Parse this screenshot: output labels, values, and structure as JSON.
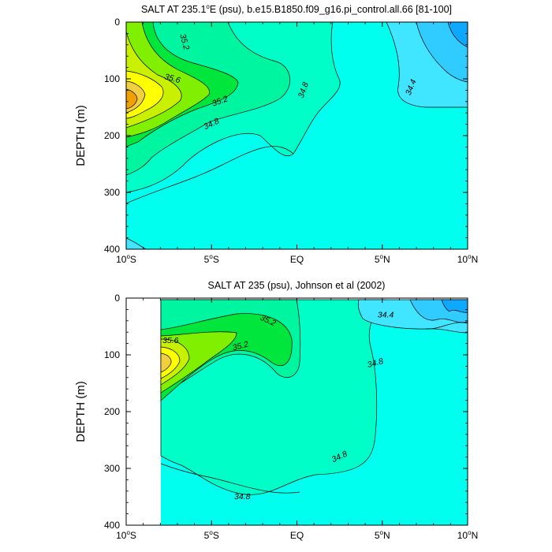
{
  "chart_data": [
    {
      "type": "contour",
      "title_parts": [
        "SALT AT 235.1",
        "o",
        "E (psu), b.e15.B1850.f09_g16.pi_control.all.66 [81-100]"
      ],
      "ylabel": "DEPTH (m)",
      "xlabel": "",
      "xlim": [
        -10,
        10
      ],
      "ylim": [
        400,
        0
      ],
      "x_ticks": [
        {
          "value": -10,
          "num": "10",
          "deg": "o",
          "hemi": "S"
        },
        {
          "value": -5,
          "num": "5",
          "deg": "o",
          "hemi": "S"
        },
        {
          "value": 0,
          "num": "EQ",
          "deg": "",
          "hemi": ""
        },
        {
          "value": 5,
          "num": "5",
          "deg": "o",
          "hemi": "N"
        },
        {
          "value": 10,
          "num": "10",
          "deg": "o",
          "hemi": "N"
        }
      ],
      "y_ticks": [
        {
          "value": 0,
          "label": "0"
        },
        {
          "value": 100,
          "label": "100"
        },
        {
          "value": 200,
          "label": "200"
        },
        {
          "value": 300,
          "label": "300"
        },
        {
          "value": 400,
          "label": "400"
        }
      ],
      "contour_labels": [
        {
          "text": "35.2",
          "lon": -6.6,
          "depth": 35,
          "angle": 75
        },
        {
          "text": "35.6",
          "lon": -7.3,
          "depth": 100,
          "angle": 15
        },
        {
          "text": "35.2",
          "lon": -4.5,
          "depth": 140,
          "angle": -20
        },
        {
          "text": "34.8",
          "lon": -5.0,
          "depth": 180,
          "angle": -25
        },
        {
          "text": "34.8",
          "lon": 0.4,
          "depth": 120,
          "angle": -70
        },
        {
          "text": "34.4",
          "lon": 6.7,
          "depth": 115,
          "angle": -68
        }
      ]
    },
    {
      "type": "contour",
      "title_parts": [
        "SALT AT 235 (psu), Johnson et al (2002)"
      ],
      "ylabel": "DEPTH (m)",
      "xlabel": "",
      "xlim": [
        -10,
        10
      ],
      "ylim": [
        400,
        0
      ],
      "data_xlim": [
        -8,
        10
      ],
      "x_ticks": [
        {
          "value": -10,
          "num": "10",
          "deg": "o",
          "hemi": "S"
        },
        {
          "value": -5,
          "num": "5",
          "deg": "o",
          "hemi": "S"
        },
        {
          "value": 0,
          "num": "EQ",
          "deg": "",
          "hemi": ""
        },
        {
          "value": 5,
          "num": "5",
          "deg": "o",
          "hemi": "N"
        },
        {
          "value": 10,
          "num": "10",
          "deg": "o",
          "hemi": "N"
        }
      ],
      "y_ticks": [
        {
          "value": 0,
          "label": "0"
        },
        {
          "value": 100,
          "label": "100"
        },
        {
          "value": 200,
          "label": "200"
        },
        {
          "value": 300,
          "label": "300"
        },
        {
          "value": 400,
          "label": "400"
        }
      ],
      "contour_labels": [
        {
          "text": "35.2",
          "lon": -1.7,
          "depth": 40,
          "angle": 25
        },
        {
          "text": "35.6",
          "lon": -7.4,
          "depth": 75,
          "angle": 0
        },
        {
          "text": "35.2",
          "lon": -3.3,
          "depth": 85,
          "angle": -15
        },
        {
          "text": "34.4",
          "lon": 5.2,
          "depth": 30,
          "angle": 0
        },
        {
          "text": "34.8",
          "lon": 4.6,
          "depth": 115,
          "angle": -15
        },
        {
          "text": "34.8",
          "lon": 2.5,
          "depth": 280,
          "angle": -25
        },
        {
          "text": "34.8",
          "lon": -3.2,
          "depth": 350,
          "angle": 0
        }
      ]
    }
  ],
  "colors": {
    "cyan": "#00ffee",
    "aquamarine": "#00ffc8",
    "light_green": "#00f5a0",
    "green": "#00e63c",
    "lime": "#80f000",
    "yellow_green": "#c8f000",
    "yellow": "#ffff00",
    "amber": "#f0d040",
    "orange": "#f0a000",
    "light_cyan": "#40e6ff",
    "sky": "#30ccff",
    "blue": "#0fa8ff"
  }
}
